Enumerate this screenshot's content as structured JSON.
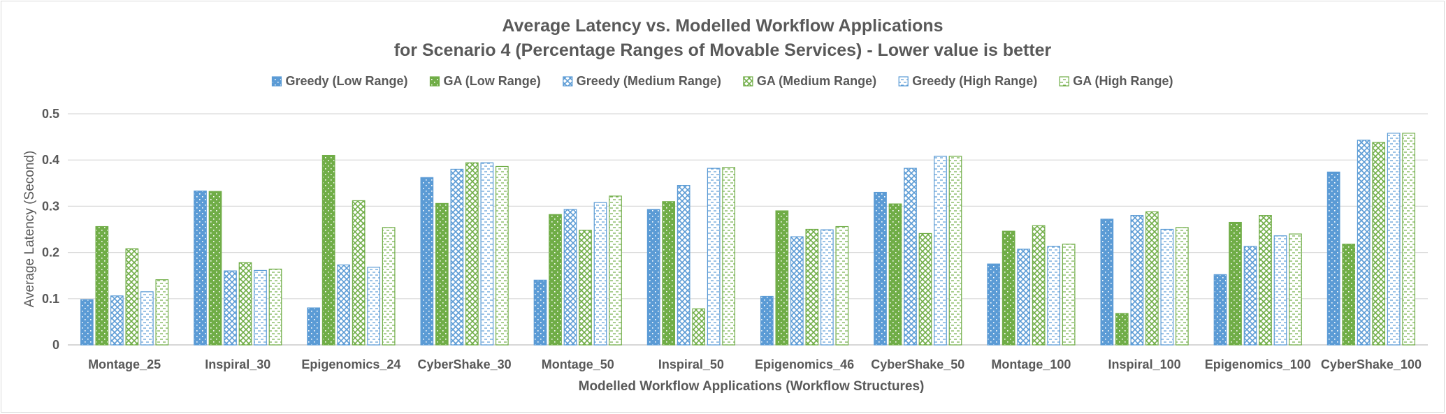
{
  "chart_data": {
    "type": "bar",
    "title": [
      "Average Latency vs. Modelled Workflow Applications",
      "for Scenario 4 (Percentage Ranges of Movable Services) - Lower value is better"
    ],
    "xlabel": "Modelled Workflow Applications (Workflow Structures)",
    "ylabel": "Average Latency (Second)",
    "ylim": [
      0,
      0.5
    ],
    "yticks": [
      "0",
      "0.1",
      "0.2",
      "0.3",
      "0.4",
      "0.5"
    ],
    "grid": true,
    "legend_position": "top",
    "categories": [
      "Montage_25",
      "Inspiral_30",
      "Epigenomics_24",
      "CyberShake_30",
      "Montage_50",
      "Inspiral_50",
      "Epigenomics_46",
      "CyberShake_50",
      "Montage_100",
      "Inspiral_100",
      "Epigenomics_100",
      "CyberShake_100"
    ],
    "series": [
      {
        "name": "Greedy (Low Range)",
        "color": "#5b9bd5",
        "pattern": "dots",
        "values": [
          0.098,
          0.333,
          0.08,
          0.362,
          0.14,
          0.293,
          0.105,
          0.33,
          0.175,
          0.272,
          0.152,
          0.374
        ]
      },
      {
        "name": "GA (Low Range)",
        "color": "#70ad47",
        "pattern": "dots",
        "values": [
          0.256,
          0.332,
          0.41,
          0.306,
          0.282,
          0.31,
          0.29,
          0.305,
          0.246,
          0.068,
          0.265,
          0.218
        ]
      },
      {
        "name": "Greedy (Medium Range)",
        "color": "#5b9bd5",
        "pattern": "check",
        "values": [
          0.106,
          0.16,
          0.173,
          0.38,
          0.293,
          0.345,
          0.234,
          0.382,
          0.207,
          0.28,
          0.213,
          0.443
        ]
      },
      {
        "name": "GA (Medium Range)",
        "color": "#70ad47",
        "pattern": "check",
        "values": [
          0.208,
          0.178,
          0.312,
          0.394,
          0.248,
          0.078,
          0.25,
          0.241,
          0.258,
          0.288,
          0.28,
          0.438
        ]
      },
      {
        "name": "Greedy (High Range)",
        "color": "#5b9bd5",
        "pattern": "dash",
        "values": [
          0.115,
          0.161,
          0.168,
          0.394,
          0.308,
          0.382,
          0.249,
          0.408,
          0.213,
          0.25,
          0.236,
          0.458
        ]
      },
      {
        "name": "GA (High Range)",
        "color": "#70ad47",
        "pattern": "dash",
        "values": [
          0.141,
          0.164,
          0.254,
          0.386,
          0.322,
          0.384,
          0.256,
          0.408,
          0.218,
          0.254,
          0.24,
          0.458
        ]
      }
    ]
  }
}
